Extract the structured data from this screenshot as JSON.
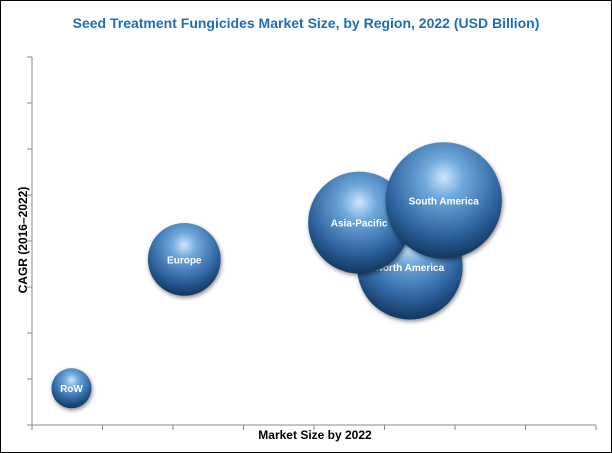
{
  "chart_data": {
    "type": "scatter",
    "title": "Seed Treatment Fungicides Market Size, by Region, 2022 (USD Billion)",
    "xlabel": "Market Size by 2022",
    "ylabel": "CAGR (2016–2022)",
    "grid": false,
    "legend": "none",
    "axis_numbers_shown": false,
    "xlim": [
      0,
      10
    ],
    "ylim": [
      0,
      10
    ],
    "series": [
      {
        "label": "RoW",
        "x": 0.7,
        "y": 1.0,
        "size": 0.55,
        "color": "#4a7fb5"
      },
      {
        "label": "Europe",
        "x": 2.7,
        "y": 4.5,
        "size": 1.0,
        "color": "#4a7fb5"
      },
      {
        "label": "North America",
        "x": 6.7,
        "y": 4.3,
        "size": 1.45,
        "color": "#3f74ac"
      },
      {
        "label": "Asia-Pacific",
        "x": 5.8,
        "y": 5.5,
        "size": 1.4,
        "color": "#4a85bd"
      },
      {
        "label": "South America",
        "x": 7.3,
        "y": 6.1,
        "size": 1.6,
        "color": "#4a85bd"
      }
    ]
  }
}
